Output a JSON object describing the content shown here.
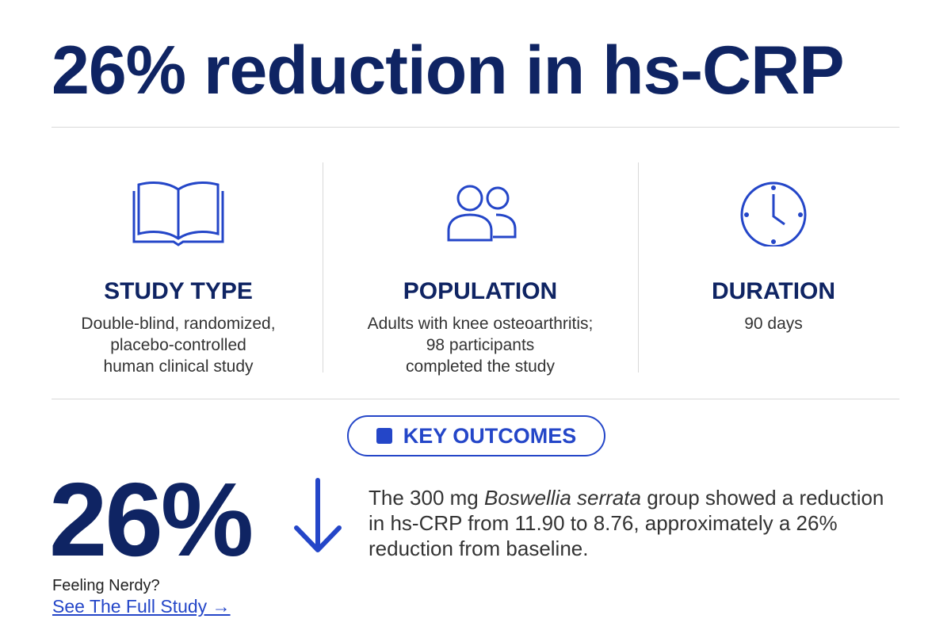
{
  "header": {
    "title": "26% reduction in hs-CRP"
  },
  "columns": [
    {
      "heading": "STUDY TYPE",
      "lines": [
        "Double-blind, randomized,",
        "placebo-controlled",
        "human clinical study"
      ]
    },
    {
      "heading": "POPULATION",
      "lines": [
        "Adults with knee osteoarthritis;",
        "98 participants",
        "completed the study"
      ]
    },
    {
      "heading": "DURATION",
      "lines": [
        "90 days"
      ]
    }
  ],
  "outcomes": {
    "badge": "KEY OUTCOMES",
    "stat": "26%",
    "text": {
      "before": "The 300 mg ",
      "emphasis": "Boswellia serrata",
      "after": " group showed a reduction in hs-CRP from 11.90 to 8.76, approximately a 26% reduction from baseline."
    }
  },
  "footer": {
    "prompt": "Feeling Nerdy?",
    "link": "See The Full Study →"
  }
}
